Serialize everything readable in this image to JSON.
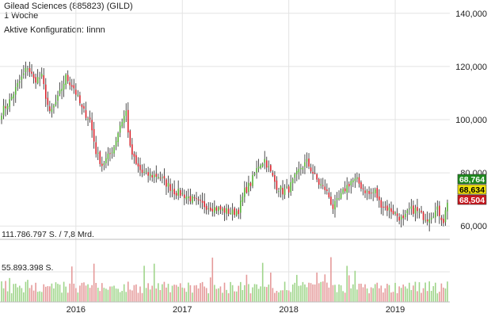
{
  "header": {
    "title": "Gilead Sciences (885823) (GILD)",
    "interval": "1 Woche",
    "config": "Aktive Konfiguration: Iinnn"
  },
  "colors": {
    "up": "#55b135",
    "down": "#d9232d",
    "wick": "#222222",
    "grid": "#e3e3e3",
    "vol_up": "#9fd58a",
    "vol_down": "#e59a9a",
    "badge_last": "#1f8a1f",
    "badge_mid": "#f1e10c",
    "badge_low": "#c8171e"
  },
  "chart_data": {
    "type": "candlestick",
    "price_axis": {
      "min": 55000,
      "max": 145000,
      "ticks": [
        60000,
        80000,
        100000,
        120000,
        140000
      ],
      "labels": [
        "60,000",
        "80,000",
        "100,000",
        "120,000",
        "140,000"
      ]
    },
    "x_axis": {
      "labels": [
        "2016",
        "2017",
        "2018",
        "2019"
      ]
    },
    "last_values": [
      {
        "label": "68,764",
        "value": 68764,
        "role": "close"
      },
      {
        "label": "68,634",
        "value": 68634,
        "role": "mid"
      },
      {
        "label": "68,504",
        "value": 68504,
        "role": "low"
      }
    ],
    "volume_axis": {
      "labels": [
        "111.786.797 S. / 7,8 Mrd.",
        "55.893.398 S."
      ],
      "max": 111786797
    },
    "price_anchors": [
      [
        0,
        103000
      ],
      [
        4,
        107000
      ],
      [
        8,
        113000
      ],
      [
        11,
        117000
      ],
      [
        13,
        120000
      ],
      [
        16,
        115000
      ],
      [
        20,
        116000
      ],
      [
        24,
        102000
      ],
      [
        28,
        108000
      ],
      [
        32,
        116000
      ],
      [
        36,
        112000
      ],
      [
        40,
        104000
      ],
      [
        44,
        100000
      ],
      [
        47,
        88000
      ],
      [
        50,
        83000
      ],
      [
        53,
        86000
      ],
      [
        56,
        90000
      ],
      [
        59,
        98000
      ],
      [
        62,
        103000
      ],
      [
        64,
        89000
      ],
      [
        67,
        83000
      ],
      [
        70,
        80000
      ],
      [
        74,
        79000
      ],
      [
        78,
        79000
      ],
      [
        82,
        76000
      ],
      [
        86,
        73000
      ],
      [
        90,
        72000
      ],
      [
        95,
        70000
      ],
      [
        100,
        68000
      ],
      [
        105,
        67000
      ],
      [
        110,
        66000
      ],
      [
        115,
        65000
      ],
      [
        118,
        66000
      ],
      [
        121,
        73000
      ],
      [
        124,
        76000
      ],
      [
        128,
        83000
      ],
      [
        131,
        85000
      ],
      [
        134,
        80000
      ],
      [
        137,
        75000
      ],
      [
        140,
        73000
      ],
      [
        143,
        74000
      ],
      [
        146,
        78000
      ],
      [
        149,
        82000
      ],
      [
        152,
        84000
      ],
      [
        155,
        80000
      ],
      [
        158,
        76000
      ],
      [
        161,
        74000
      ],
      [
        163,
        71000
      ],
      [
        165,
        67000
      ],
      [
        168,
        70000
      ],
      [
        171,
        74000
      ],
      [
        174,
        77000
      ],
      [
        177,
        77000
      ],
      [
        180,
        74000
      ],
      [
        183,
        72000
      ],
      [
        186,
        73000
      ],
      [
        188,
        69000
      ],
      [
        191,
        67000
      ],
      [
        194,
        66000
      ],
      [
        197,
        64000
      ],
      [
        200,
        62000
      ],
      [
        203,
        66000
      ],
      [
        206,
        66000
      ],
      [
        209,
        64000
      ],
      [
        212,
        63000
      ],
      [
        215,
        65000
      ],
      [
        217,
        66000
      ],
      [
        220,
        62000
      ],
      [
        222,
        68764
      ]
    ],
    "year_positions": [
      37,
      90,
      143,
      196
    ]
  }
}
